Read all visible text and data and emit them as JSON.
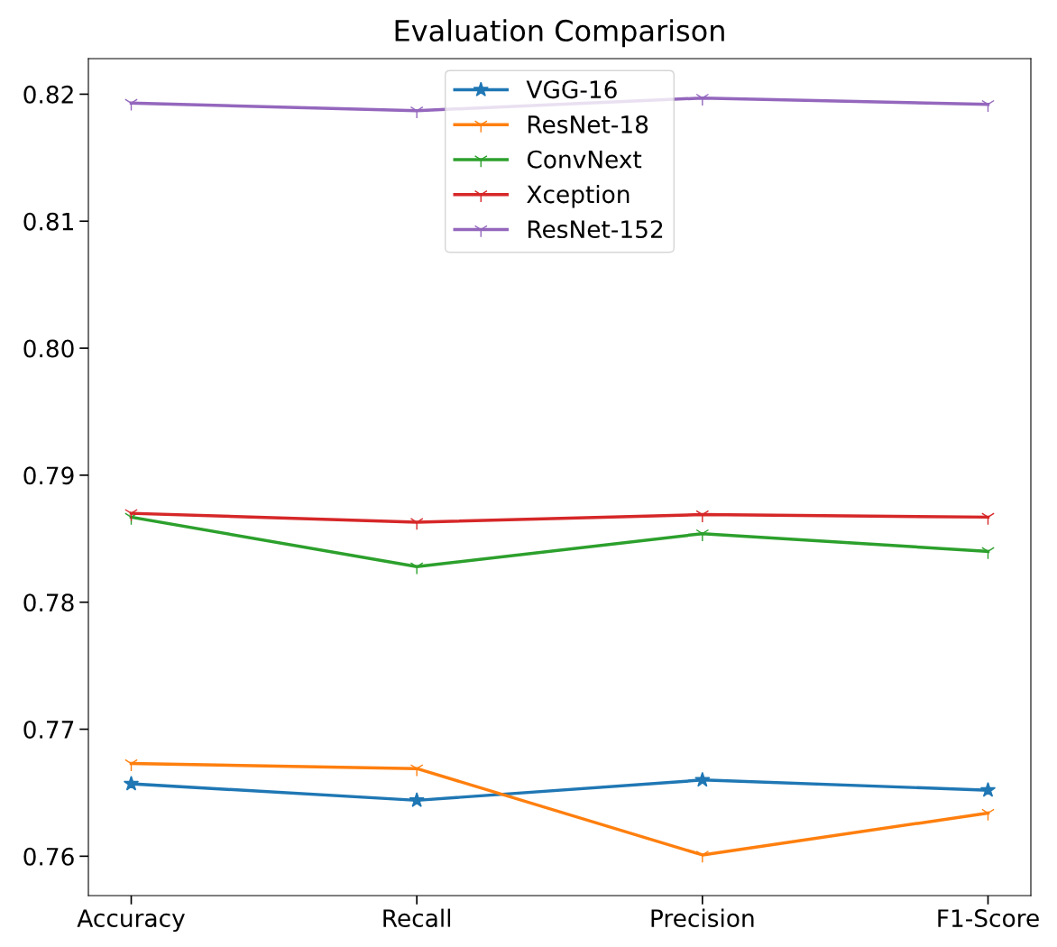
{
  "chart_data": {
    "type": "line",
    "title": "Evaluation Comparison",
    "categories": [
      "Accuracy",
      "Recall",
      "Precision",
      "F1-Score"
    ],
    "series": [
      {
        "name": "VGG-16",
        "color": "#1f77b4",
        "marker": "star",
        "values": [
          0.7657,
          0.7644,
          0.766,
          0.7652
        ]
      },
      {
        "name": "ResNet-18",
        "color": "#ff7f0e",
        "marker": "cross",
        "values": [
          0.7673,
          0.7669,
          0.7601,
          0.7634
        ]
      },
      {
        "name": "ConvNext",
        "color": "#2ca02c",
        "marker": "cross",
        "values": [
          0.7867,
          0.7828,
          0.7854,
          0.784
        ]
      },
      {
        "name": "Xception",
        "color": "#d62728",
        "marker": "cross",
        "values": [
          0.787,
          0.7863,
          0.7869,
          0.7867
        ]
      },
      {
        "name": "ResNet-152",
        "color": "#9467bd",
        "marker": "cross",
        "values": [
          0.8193,
          0.8187,
          0.8197,
          0.8192
        ]
      }
    ],
    "ylim": [
      0.7569,
      0.8228
    ],
    "yticks": [
      0.76,
      0.77,
      0.78,
      0.79,
      {
        "value": 0.8,
        "label": "0.80"
      },
      0.81,
      0.82
    ],
    "grid": false,
    "legend": "top",
    "line_style": "solid"
  }
}
